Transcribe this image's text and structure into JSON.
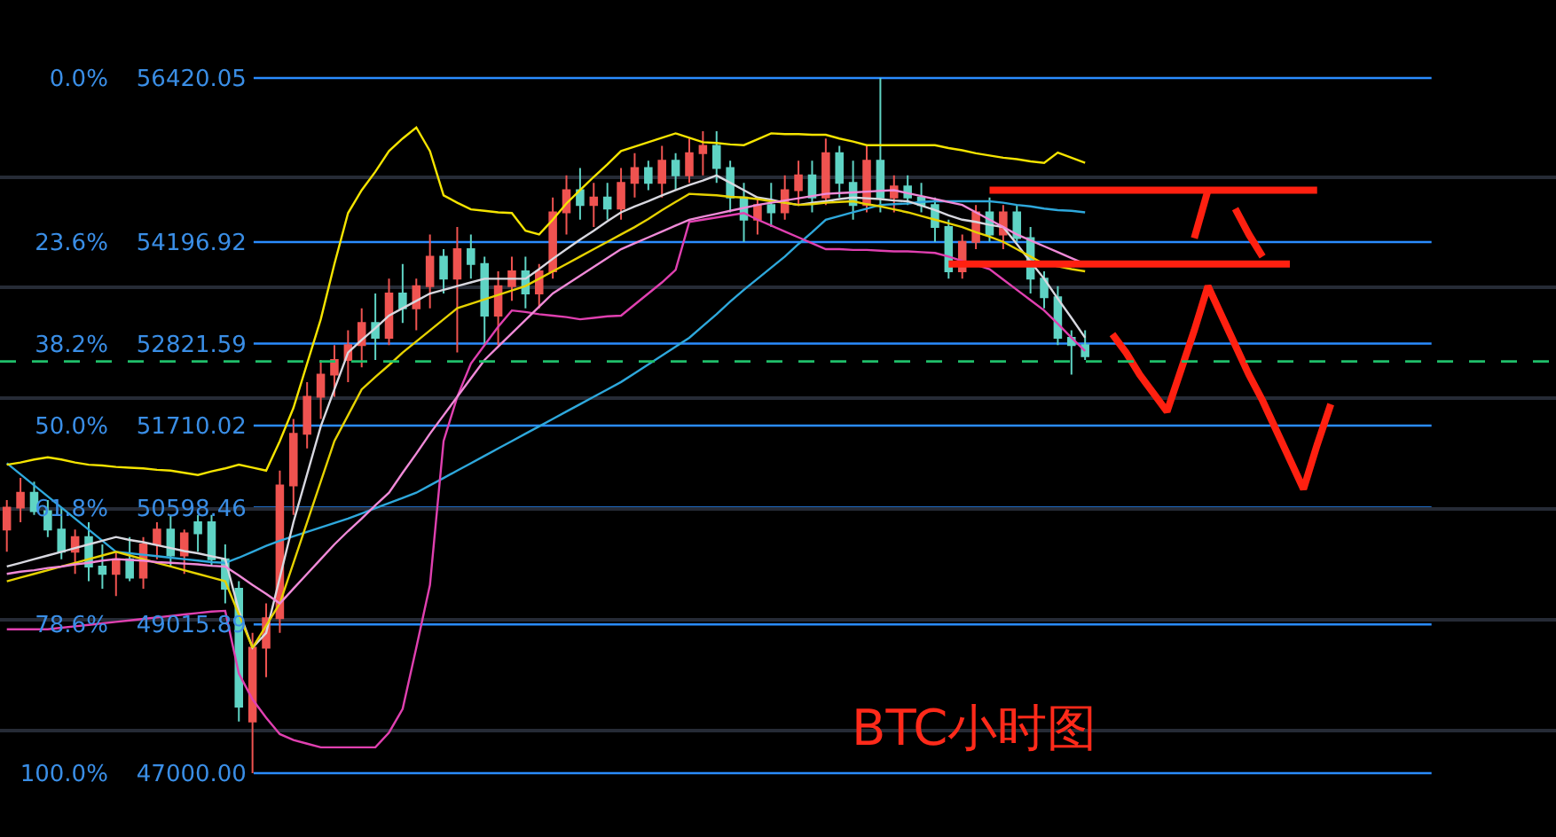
{
  "chart_data": {
    "type": "candlestick",
    "categories": [
      null,
      null,
      null,
      null,
      null,
      null,
      null,
      null,
      null,
      null,
      null,
      null,
      null,
      null,
      null,
      null,
      null,
      null,
      null,
      null,
      null,
      null,
      null,
      null,
      null,
      null,
      null,
      null,
      null,
      null,
      null,
      null,
      null,
      null,
      null,
      null,
      null,
      null,
      null,
      null,
      null,
      null,
      null,
      null,
      null,
      null,
      null,
      null,
      null,
      null,
      null,
      null,
      null,
      null,
      null,
      null,
      null,
      null,
      null,
      null,
      null,
      null,
      null,
      null,
      null,
      null,
      null,
      null,
      null,
      null,
      null,
      null,
      null,
      null,
      null,
      null,
      null,
      null,
      null,
      null,
      null,
      null,
      null,
      null,
      null,
      null,
      null,
      null,
      null,
      null,
      null,
      null,
      null,
      null,
      null,
      null,
      null,
      null,
      null,
      null,
      null,
      null,
      null,
      null,
      null,
      null,
      null,
      null,
      null,
      null,
      null,
      null,
      null,
      null
    ],
    "y2lim": [
      109.18,
      -11.22
    ],
    "y2ticks": [
      {
        "value": 0,
        "label": "0.0%"
      },
      {
        "value": 23.6,
        "label": "23.6%"
      },
      {
        "value": 38.2,
        "label": "38.2%"
      },
      {
        "value": 50,
        "label": "50.0%"
      },
      {
        "value": 61.8,
        "label": "61.8%"
      },
      {
        "value": 78.6,
        "label": "78.6%"
      },
      {
        "value": 100,
        "label": "100.0%"
      }
    ],
    "ylim": [
      46135,
      57477
    ],
    "yticks": [
      56420.05,
      {
        "value": 55080,
        "label": null
      },
      54196.92,
      {
        "value": 53580,
        "label": null
      },
      52821.59,
      {
        "value": 52080,
        "label": null
      },
      51710.02,
      50598.46,
      {
        "value": 50580,
        "label": null
      },
      {
        "value": 49080,
        "label": null
      },
      49015.89,
      {
        "value": 47580,
        "label": null
      },
      {
        "value": 47000,
        "label": "47000.00"
      }
    ],
    "grid": true,
    "tick_labels": "y",
    "ohlc": [
      [
        50300,
        50700,
        50000,
        50600
      ],
      [
        50600,
        51000,
        50400,
        50800
      ],
      [
        50800,
        50950,
        50500,
        50550
      ],
      [
        50550,
        50700,
        50200,
        50300
      ],
      [
        50300,
        50600,
        49900,
        50000
      ],
      [
        50000,
        50300,
        49700,
        50200
      ],
      [
        50200,
        50400,
        49600,
        49800
      ],
      [
        49800,
        50100,
        49500,
        49700
      ],
      [
        49700,
        50000,
        49400,
        49900
      ],
      [
        49900,
        50200,
        49600,
        49650
      ],
      [
        49650,
        50200,
        49500,
        50100
      ],
      [
        50100,
        50400,
        49900,
        50300
      ],
      [
        50300,
        50500,
        49800,
        49950
      ],
      [
        49950,
        50300,
        49700,
        50250
      ],
      [
        50400,
        50500,
        50000,
        50250
      ],
      [
        50400,
        50500,
        49800,
        49900
      ],
      [
        49900,
        50100,
        49300,
        49500
      ],
      [
        49500,
        49600,
        47700,
        47900
      ],
      [
        47700,
        48900,
        47000,
        48700
      ],
      [
        48700,
        49300,
        48300,
        49100
      ],
      [
        49100,
        51100,
        48900,
        50900
      ],
      [
        50900,
        51800,
        50500,
        51600
      ],
      [
        51600,
        52300,
        51400,
        52100
      ],
      [
        52100,
        52600,
        51800,
        52400
      ],
      [
        52400,
        52800,
        52100,
        52600
      ],
      [
        52600,
        53000,
        52300,
        52800
      ],
      [
        52800,
        53300,
        52500,
        53100
      ],
      [
        53100,
        53500,
        52600,
        52900
      ],
      [
        52900,
        53700,
        52800,
        53500
      ],
      [
        53500,
        53900,
        53100,
        53300
      ],
      [
        53300,
        53700,
        53000,
        53600
      ],
      [
        53600,
        54300,
        53300,
        54000
      ],
      [
        54000,
        54100,
        53500,
        53700
      ],
      [
        53700,
        54400,
        52700,
        54100
      ],
      [
        54100,
        54300,
        53700,
        53900
      ],
      [
        53900,
        54000,
        52800,
        53200
      ],
      [
        53200,
        53800,
        52800,
        53600
      ],
      [
        53600,
        54000,
        53400,
        53800
      ],
      [
        53800,
        54000,
        53300,
        53500
      ],
      [
        53500,
        53900,
        53300,
        53800
      ],
      [
        53800,
        54800,
        53700,
        54600
      ],
      [
        54600,
        55100,
        54300,
        54900
      ],
      [
        54900,
        55200,
        54500,
        54700
      ],
      [
        54700,
        55000,
        54400,
        54800
      ],
      [
        54800,
        55000,
        54500,
        54650
      ],
      [
        54650,
        55200,
        54500,
        55000
      ],
      [
        55000,
        55400,
        54800,
        55200
      ],
      [
        55200,
        55300,
        54900,
        55000
      ],
      [
        55000,
        55500,
        54800,
        55300
      ],
      [
        55300,
        55400,
        54900,
        55100
      ],
      [
        55100,
        55600,
        55000,
        55400
      ],
      [
        55400,
        55700,
        55100,
        55500
      ],
      [
        55500,
        55700,
        55000,
        55200
      ],
      [
        55200,
        55300,
        54600,
        54800
      ],
      [
        54800,
        55000,
        54200,
        54500
      ],
      [
        54500,
        54800,
        54300,
        54700
      ],
      [
        54700,
        55000,
        54400,
        54600
      ],
      [
        54600,
        55100,
        54500,
        54900
      ],
      [
        54900,
        55300,
        54700,
        55100
      ],
      [
        55100,
        55300,
        54600,
        54800
      ],
      [
        54800,
        55600,
        54700,
        55400
      ],
      [
        55400,
        55500,
        54800,
        55000
      ],
      [
        55000,
        55300,
        54500,
        54700
      ],
      [
        54700,
        55500,
        54600,
        55300
      ],
      [
        55300,
        56420,
        54600,
        54800
      ],
      [
        54800,
        55100,
        54600,
        54950
      ],
      [
        54950,
        55100,
        54700,
        54800
      ],
      [
        54800,
        55000,
        54600,
        54700
      ],
      [
        54700,
        54800,
        54200,
        54400
      ],
      [
        54400,
        54500,
        53700,
        53800
      ],
      [
        53800,
        54300,
        53700,
        54200
      ],
      [
        54200,
        54700,
        54100,
        54600
      ],
      [
        54600,
        54800,
        54200,
        54300
      ],
      [
        54300,
        54700,
        54100,
        54600
      ],
      [
        54600,
        54700,
        54200,
        54250
      ],
      [
        54250,
        54400,
        53500,
        53700
      ],
      [
        53700,
        53800,
        53300,
        53450
      ],
      [
        53450,
        53600,
        52800,
        52900
      ],
      [
        52900,
        53000,
        52400,
        52800
      ],
      [
        52800,
        53000,
        52600,
        52650
      ],
      null,
      null,
      null,
      null,
      null,
      null,
      null,
      null,
      null,
      null,
      null,
      null,
      null,
      null,
      null,
      null,
      null,
      null,
      null,
      null,
      null,
      null,
      null,
      null,
      null,
      null,
      null,
      null,
      null,
      null,
      null,
      null,
      null,
      null
    ],
    "colors": [
      "#ef5350",
      "#ef5350",
      "#5fd3c4",
      "#5fd3c4",
      "#5fd3c4",
      "#ef5350",
      "#5fd3c4",
      "#5fd3c4",
      "#ef5350",
      "#5fd3c4",
      "#ef5350",
      "#ef5350",
      "#5fd3c4",
      "#ef5350",
      "#5fd3c4",
      "#5fd3c4",
      "#5fd3c4",
      "#5fd3c4",
      "#ef5350",
      "#ef5350",
      "#ef5350",
      "#ef5350",
      "#ef5350",
      "#ef5350",
      "#ef5350",
      "#ef5350",
      "#ef5350",
      "#5fd3c4",
      "#ef5350",
      "#5fd3c4",
      "#ef5350",
      "#ef5350",
      "#5fd3c4",
      "#ef5350",
      "#5fd3c4",
      "#5fd3c4",
      "#ef5350",
      "#ef5350",
      "#5fd3c4",
      "#ef5350",
      "#ef5350",
      "#ef5350",
      "#5fd3c4",
      "#ef5350",
      "#5fd3c4",
      "#ef5350",
      "#ef5350",
      "#5fd3c4",
      "#ef5350",
      "#5fd3c4",
      "#ef5350",
      "#ef5350",
      "#5fd3c4",
      "#5fd3c4",
      "#5fd3c4",
      "#ef5350",
      "#5fd3c4",
      "#ef5350",
      "#ef5350",
      "#5fd3c4",
      "#ef5350",
      "#5fd3c4",
      "#5fd3c4",
      "#ef5350",
      "#5fd3c4",
      "#ef5350",
      "#5fd3c4",
      "#5fd3c4",
      "#5fd3c4",
      "#5fd3c4",
      "#ef5350",
      "#ef5350",
      "#5fd3c4",
      "#ef5350",
      "#5fd3c4",
      "#5fd3c4",
      "#5fd3c4",
      "#5fd3c4",
      "#5fd3c4",
      "#5fd3c4",
      null,
      null,
      null,
      null,
      null,
      null,
      null,
      null,
      null,
      null,
      null,
      null,
      null,
      null,
      null,
      null,
      null,
      null,
      null,
      null,
      null,
      null,
      null,
      null,
      null,
      null,
      null,
      null,
      null,
      null,
      null,
      null,
      null,
      null
    ],
    "series": [
      {
        "type": "line",
        "color": "#2ea8dc",
        "values": [
          51200,
          51050,
          50900,
          50750,
          50600,
          50450,
          50300,
          50150,
          50000,
          49980,
          49960,
          49940,
          49920,
          49900,
          49880,
          49860,
          49850,
          49920,
          50000,
          50080,
          50150,
          50210,
          50270,
          50330,
          50390,
          50450,
          50520,
          50590,
          50660,
          50730,
          50800,
          50900,
          51000,
          51100,
          51200,
          51300,
          51400,
          51500,
          51600,
          51700,
          51800,
          51900,
          52000,
          52100,
          52200,
          52300,
          52420,
          52540,
          52660,
          52780,
          52900,
          53060,
          53220,
          53390,
          53550,
          53700,
          53850,
          54000,
          54170,
          54330,
          54500,
          54550,
          54600,
          54650,
          54700,
          54710,
          54720,
          54740,
          54750,
          54750,
          54750,
          54750,
          54750,
          54730,
          54700,
          54680,
          54650,
          54630,
          54620,
          54600,
          null,
          null,
          null,
          null,
          null,
          null,
          null,
          null,
          null,
          null,
          null,
          null,
          null,
          null,
          null,
          null,
          null,
          null,
          null,
          null,
          null,
          null,
          null,
          null,
          null,
          null,
          null,
          null,
          null,
          null,
          null,
          null,
          null,
          null
        ]
      },
      {
        "type": "line",
        "color": "#e040b0",
        "values": [
          48950,
          48950,
          48950,
          48950,
          48970,
          48990,
          49010,
          49030,
          49050,
          49070,
          49090,
          49110,
          49130,
          49150,
          49170,
          49190,
          49200,
          48350,
          48000,
          47750,
          47530,
          47450,
          47400,
          47350,
          47350,
          47350,
          47350,
          47350,
          47550,
          47870,
          48700,
          49550,
          51500,
          52100,
          52550,
          52800,
          53050,
          53270,
          53250,
          53220,
          53200,
          53180,
          53150,
          53170,
          53190,
          53200,
          53350,
          53500,
          53650,
          53820,
          54470,
          54500,
          54530,
          54560,
          54590,
          54500,
          54420,
          54340,
          54260,
          54180,
          54100,
          54100,
          54090,
          54090,
          54080,
          54070,
          54070,
          54060,
          54050,
          54000,
          53940,
          53890,
          53830,
          53690,
          53550,
          53410,
          53270,
          53090,
          52900,
          52720,
          null,
          null,
          null,
          null,
          null,
          null,
          null,
          null,
          null,
          null,
          null,
          null,
          null,
          null,
          null,
          null,
          null,
          null,
          null,
          null,
          null,
          null,
          null,
          null,
          null,
          null,
          null,
          null,
          null,
          null,
          null,
          null,
          null,
          null
        ]
      },
      {
        "type": "line",
        "color": "#f5e400",
        "values": [
          51180,
          51210,
          51250,
          51280,
          51250,
          51210,
          51180,
          51170,
          51150,
          51140,
          51130,
          51110,
          51100,
          51070,
          51040,
          51090,
          51130,
          51180,
          51140,
          51100,
          51500,
          51950,
          52550,
          53150,
          53900,
          54590,
          54900,
          55150,
          55430,
          55600,
          55750,
          55430,
          54830,
          54730,
          54640,
          54620,
          54600,
          54590,
          54350,
          54300,
          54500,
          54720,
          54900,
          55080,
          55250,
          55430,
          55490,
          55550,
          55610,
          55670,
          55610,
          55550,
          55540,
          55520,
          55510,
          55590,
          55670,
          55660,
          55660,
          55650,
          55650,
          55600,
          55560,
          55510,
          55510,
          55510,
          55510,
          55510,
          55510,
          55470,
          55440,
          55400,
          55370,
          55340,
          55320,
          55290,
          55270,
          55410,
          55340,
          55270,
          null,
          null,
          null,
          null,
          null,
          null,
          null,
          null,
          null,
          null,
          null,
          null,
          null,
          null,
          null,
          null,
          null,
          null,
          null,
          null,
          null,
          null,
          null,
          null,
          null,
          null,
          null,
          null,
          null,
          null,
          null,
          null,
          null,
          null
        ]
      },
      {
        "type": "line",
        "color": "#d8d8e0",
        "values": [
          49800,
          49850,
          49900,
          49950,
          50000,
          50050,
          50100,
          50150,
          50200,
          50160,
          50130,
          50090,
          50050,
          50010,
          49980,
          49940,
          49900,
          49200,
          48700,
          48900,
          49650,
          50400,
          51050,
          51700,
          52200,
          52700,
          52870,
          53030,
          53200,
          53300,
          53400,
          53500,
          53550,
          53600,
          53650,
          53700,
          53700,
          53700,
          53700,
          53830,
          53970,
          54100,
          54230,
          54350,
          54480,
          54600,
          54680,
          54750,
          54830,
          54900,
          54970,
          55030,
          55100,
          55000,
          54900,
          54800,
          54770,
          54730,
          54700,
          54730,
          54750,
          54780,
          54800,
          54790,
          54780,
          54760,
          54750,
          54690,
          54630,
          54560,
          54500,
          54470,
          54430,
          54400,
          54170,
          53930,
          53700,
          53430,
          53170,
          52900,
          null,
          null,
          null,
          null,
          null,
          null,
          null,
          null,
          null,
          null,
          null,
          null,
          null,
          null,
          null,
          null,
          null,
          null,
          null,
          null,
          null,
          null,
          null,
          null,
          null,
          null,
          null,
          null,
          null,
          null,
          null,
          null,
          null,
          null
        ]
      },
      {
        "type": "line",
        "color": "#e6d200",
        "values": [
          49600,
          49650,
          49700,
          49750,
          49800,
          49850,
          49900,
          49950,
          50000,
          49950,
          49900,
          49850,
          49800,
          49750,
          49700,
          49650,
          49600,
          49150,
          48700,
          49000,
          49300,
          49850,
          50400,
          50950,
          51500,
          51850,
          52200,
          52370,
          52530,
          52700,
          52850,
          53000,
          53150,
          53300,
          53360,
          53420,
          53480,
          53540,
          53600,
          53700,
          53800,
          53900,
          54000,
          54100,
          54200,
          54300,
          54400,
          54510,
          54630,
          54740,
          54850,
          54840,
          54830,
          54810,
          54800,
          54780,
          54750,
          54730,
          54700,
          54710,
          54730,
          54740,
          54750,
          54710,
          54680,
          54640,
          54600,
          54550,
          54500,
          54450,
          54400,
          54330,
          54270,
          54200,
          54100,
          54000,
          53900,
          53870,
          53830,
          53800,
          null,
          null,
          null,
          null,
          null,
          null,
          null,
          null,
          null,
          null,
          null,
          null,
          null,
          null,
          null,
          null,
          null,
          null,
          null,
          null,
          null,
          null,
          null,
          null,
          null,
          null,
          null,
          null,
          null,
          null,
          null,
          null,
          null,
          null
        ]
      },
      {
        "type": "line",
        "color": "#f08ad8",
        "values": [
          49700,
          49730,
          49750,
          49780,
          49800,
          49830,
          49850,
          49880,
          49900,
          49890,
          49880,
          49860,
          49850,
          49840,
          49830,
          49810,
          49800,
          49680,
          49550,
          49430,
          49300,
          49500,
          49700,
          49900,
          50100,
          50280,
          50450,
          50630,
          50800,
          51070,
          51330,
          51600,
          51850,
          52100,
          52350,
          52600,
          52780,
          52960,
          53140,
          53320,
          53500,
          53620,
          53740,
          53860,
          53980,
          54100,
          54180,
          54260,
          54340,
          54420,
          54500,
          54540,
          54580,
          54620,
          54660,
          54700,
          54730,
          54760,
          54790,
          54820,
          54850,
          54860,
          54870,
          54880,
          54890,
          54900,
          54860,
          54820,
          54780,
          54740,
          54700,
          54600,
          54500,
          54400,
          54300,
          54220,
          54140,
          54060,
          53980,
          53900,
          null,
          null,
          null,
          null,
          null,
          null,
          null,
          null,
          null,
          null,
          null,
          null,
          null,
          null,
          null,
          null,
          null,
          null,
          null,
          null,
          null,
          null,
          null,
          null,
          null,
          null,
          null,
          null,
          null,
          null,
          null,
          null,
          null,
          null
        ]
      },
      {
        "type": "line",
        "color": "#ff2010",
        "values": [
          null,
          null,
          null,
          null,
          null,
          null,
          null,
          null,
          null,
          null,
          null,
          null,
          null,
          null,
          null,
          null,
          null,
          null,
          null,
          null,
          null,
          null,
          null,
          null,
          null,
          null,
          null,
          null,
          null,
          null,
          null,
          null,
          null,
          null,
          null,
          null,
          null,
          null,
          null,
          null,
          null,
          null,
          null,
          null,
          null,
          null,
          null,
          null,
          null,
          null,
          null,
          null,
          null,
          null,
          null,
          null,
          null,
          null,
          null,
          null,
          null,
          null,
          null,
          null,
          null,
          null,
          null,
          null,
          null,
          null,
          null,
          null,
          54900,
          54900,
          54900,
          54900,
          54900,
          54900,
          54900,
          54900,
          54900,
          54900,
          54900,
          54900,
          54900,
          54900,
          54900,
          54900,
          54900,
          54900,
          54900,
          54900,
          54900,
          54900,
          54900,
          54900,
          54900,
          null,
          null,
          null,
          null,
          null,
          null,
          null,
          null,
          null,
          null,
          null,
          null,
          null,
          null,
          null,
          null,
          null
        ]
      },
      {
        "type": "line",
        "color": "#ff2010",
        "values": [
          null,
          null,
          null,
          null,
          null,
          null,
          null,
          null,
          null,
          null,
          null,
          null,
          null,
          null,
          null,
          null,
          null,
          null,
          null,
          null,
          null,
          null,
          null,
          null,
          null,
          null,
          null,
          null,
          null,
          null,
          null,
          null,
          null,
          null,
          null,
          null,
          null,
          null,
          null,
          null,
          null,
          null,
          null,
          null,
          null,
          null,
          null,
          null,
          null,
          null,
          null,
          null,
          null,
          null,
          null,
          null,
          null,
          null,
          null,
          null,
          null,
          null,
          null,
          null,
          null,
          null,
          null,
          null,
          null,
          53900,
          53900,
          53900,
          53900,
          53900,
          53900,
          53900,
          53900,
          53900,
          53900,
          53900,
          53900,
          53900,
          53900,
          53900,
          53900,
          53900,
          53900,
          53900,
          53900,
          53900,
          53900,
          53900,
          53900,
          53900,
          53900,
          null,
          null,
          null,
          null,
          null,
          null,
          null,
          null,
          null,
          null,
          null,
          null,
          null,
          null,
          null,
          null,
          null,
          null,
          null
        ]
      },
      {
        "type": "line",
        "color": "#ff2010",
        "values": [
          null,
          null,
          null,
          null,
          null,
          null,
          null,
          null,
          null,
          null,
          null,
          null,
          null,
          null,
          null,
          null,
          null,
          null,
          null,
          null,
          null,
          null,
          null,
          null,
          null,
          null,
          null,
          null,
          null,
          null,
          null,
          null,
          null,
          null,
          null,
          null,
          null,
          null,
          null,
          null,
          null,
          null,
          null,
          null,
          null,
          null,
          null,
          null,
          null,
          null,
          null,
          null,
          null,
          null,
          null,
          null,
          null,
          null,
          null,
          null,
          null,
          null,
          null,
          null,
          null,
          null,
          null,
          null,
          null,
          null,
          null,
          null,
          null,
          null,
          null,
          null,
          null,
          null,
          null,
          null,
          null,
          52950,
          52700,
          52400,
          52150,
          51900,
          52450,
          53000,
          53600,
          53200,
          52800,
          52400,
          52050,
          51650,
          51250,
          50850,
          51450,
          52000,
          null,
          null,
          null,
          null,
          null,
          null,
          null,
          null,
          null,
          null,
          null,
          null,
          null,
          null,
          null,
          null
        ]
      },
      {
        "type": "line",
        "color": "#ff2010",
        "values": [
          null,
          null,
          null,
          null,
          null,
          null,
          null,
          null,
          null,
          null,
          null,
          null,
          null,
          null,
          null,
          null,
          null,
          null,
          null,
          null,
          null,
          null,
          null,
          null,
          null,
          null,
          null,
          null,
          null,
          null,
          null,
          null,
          null,
          null,
          null,
          null,
          null,
          null,
          null,
          null,
          null,
          null,
          null,
          null,
          null,
          null,
          null,
          null,
          null,
          null,
          null,
          null,
          null,
          null,
          null,
          null,
          null,
          null,
          null,
          null,
          null,
          null,
          null,
          null,
          null,
          null,
          null,
          null,
          null,
          null,
          null,
          null,
          null,
          null,
          null,
          null,
          null,
          null,
          null,
          null,
          null,
          null,
          null,
          null,
          null,
          null,
          null,
          54250,
          54900,
          null,
          54650,
          54300,
          54000,
          null,
          null,
          null,
          null,
          null,
          null,
          null,
          null,
          null,
          null,
          null,
          null,
          null,
          null,
          null,
          null,
          null,
          null,
          null,
          null,
          null
        ]
      }
    ],
    "ref_lines": [
      {
        "axis": "y",
        "value": 52580,
        "color": "#1fbf6a",
        "line_style": "dashed"
      }
    ],
    "annotations": [
      "BTC小时图"
    ]
  }
}
